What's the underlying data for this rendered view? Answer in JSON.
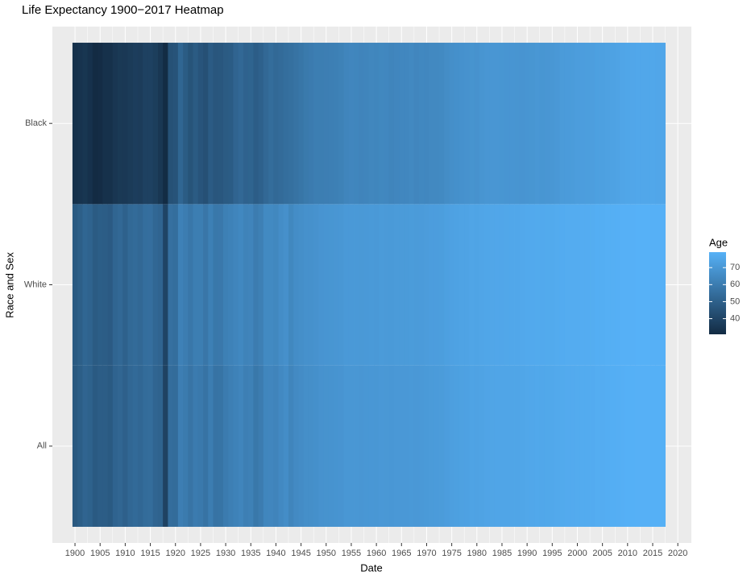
{
  "chart_data": {
    "type": "heatmap",
    "title": "Life Expectancy 1900−2017 Heatmap",
    "x_label": "Date",
    "y_label": "Race and Sex",
    "legend_title": "Age",
    "low_color": "#132B43",
    "high_color": "#56B1F7",
    "legend_ticks": [
      40,
      50,
      60,
      70
    ],
    "xlim": [
      1895.5,
      2022.7
    ],
    "xticks": [
      1900,
      1905,
      1910,
      1915,
      1920,
      1925,
      1930,
      1935,
      1940,
      1945,
      1950,
      1955,
      1960,
      1965,
      1970,
      1975,
      1980,
      1985,
      1990,
      1995,
      2000,
      2005,
      2010,
      2015,
      2020
    ],
    "grid": true,
    "x": [
      1900,
      1901,
      1902,
      1903,
      1904,
      1905,
      1906,
      1907,
      1908,
      1909,
      1910,
      1911,
      1912,
      1913,
      1914,
      1915,
      1916,
      1917,
      1918,
      1919,
      1920,
      1921,
      1922,
      1923,
      1924,
      1925,
      1926,
      1927,
      1928,
      1929,
      1930,
      1931,
      1932,
      1933,
      1934,
      1935,
      1936,
      1937,
      1938,
      1939,
      1940,
      1941,
      1942,
      1943,
      1944,
      1945,
      1946,
      1947,
      1948,
      1949,
      1950,
      1951,
      1952,
      1953,
      1954,
      1955,
      1956,
      1957,
      1958,
      1959,
      1960,
      1961,
      1962,
      1963,
      1964,
      1965,
      1966,
      1967,
      1968,
      1969,
      1970,
      1971,
      1972,
      1973,
      1974,
      1975,
      1976,
      1977,
      1978,
      1979,
      1980,
      1981,
      1982,
      1983,
      1984,
      1985,
      1986,
      1987,
      1988,
      1989,
      1990,
      1991,
      1992,
      1993,
      1994,
      1995,
      1996,
      1997,
      1998,
      1999,
      2000,
      2001,
      2002,
      2003,
      2004,
      2005,
      2006,
      2007,
      2008,
      2009,
      2010,
      2011,
      2012,
      2013,
      2014,
      2015,
      2016,
      2017
    ],
    "series": [
      {
        "name": "All",
        "values": [
          47.3,
          49.1,
          51.5,
          50.5,
          47.6,
          48.7,
          48.7,
          47.6,
          51.1,
          52.1,
          50.0,
          52.6,
          53.5,
          52.5,
          54.2,
          54.5,
          51.7,
          50.9,
          39.1,
          54.7,
          54.1,
          60.8,
          59.6,
          57.2,
          59.7,
          59.0,
          56.7,
          60.4,
          56.8,
          57.1,
          59.7,
          61.1,
          62.1,
          63.3,
          61.1,
          61.7,
          58.5,
          60.0,
          63.5,
          63.7,
          62.9,
          64.8,
          66.2,
          63.3,
          65.2,
          65.9,
          66.7,
          66.8,
          67.2,
          68.0,
          68.2,
          68.4,
          68.6,
          68.8,
          69.6,
          69.6,
          69.7,
          69.5,
          69.6,
          69.9,
          69.7,
          70.2,
          70.1,
          69.9,
          70.2,
          70.2,
          70.2,
          70.5,
          70.2,
          70.5,
          70.8,
          71.1,
          71.2,
          71.4,
          72.0,
          72.6,
          72.9,
          73.3,
          73.5,
          73.9,
          73.7,
          74.1,
          74.5,
          74.6,
          74.7,
          74.7,
          74.7,
          74.9,
          74.9,
          75.1,
          75.4,
          75.5,
          75.8,
          75.5,
          75.7,
          75.8,
          76.1,
          76.5,
          76.7,
          76.7,
          76.8,
          76.9,
          76.9,
          77.1,
          77.5,
          77.4,
          77.7,
          77.9,
          78.1,
          78.5,
          78.7,
          78.7,
          78.8,
          78.8,
          78.9,
          78.7,
          78.7,
          78.6
        ]
      },
      {
        "name": "White",
        "values": [
          47.6,
          49.4,
          51.9,
          50.9,
          48.0,
          49.1,
          48.9,
          47.9,
          51.8,
          52.8,
          50.3,
          53.0,
          53.9,
          52.9,
          54.9,
          55.1,
          52.5,
          51.5,
          39.8,
          55.8,
          54.9,
          61.8,
          60.4,
          58.3,
          60.6,
          60.7,
          58.0,
          61.4,
          58.4,
          58.6,
          61.4,
          62.1,
          63.2,
          64.3,
          62.4,
          62.9,
          60.0,
          61.5,
          65.0,
          65.0,
          64.2,
          66.2,
          67.3,
          64.2,
          66.2,
          66.8,
          67.5,
          67.6,
          68.0,
          68.8,
          69.1,
          69.3,
          69.5,
          69.7,
          70.5,
          70.5,
          70.6,
          70.3,
          70.5,
          70.7,
          70.6,
          71.0,
          70.9,
          70.8,
          71.1,
          71.1,
          71.1,
          71.4,
          71.1,
          71.3,
          71.7,
          72.0,
          72.0,
          72.2,
          72.8,
          73.4,
          73.6,
          74.0,
          74.1,
          74.6,
          74.4,
          74.8,
          75.1,
          75.2,
          75.3,
          75.3,
          75.4,
          75.6,
          75.6,
          75.9,
          76.1,
          76.3,
          76.5,
          76.3,
          76.5,
          76.5,
          76.8,
          77.1,
          77.3,
          77.3,
          77.3,
          77.4,
          77.4,
          77.6,
          77.9,
          77.9,
          78.2,
          78.4,
          78.5,
          78.8,
          78.9,
          78.9,
          79.0,
          79.0,
          79.1,
          78.9,
          78.9,
          78.8
        ]
      },
      {
        "name": "Black",
        "values": [
          33.0,
          33.7,
          34.6,
          33.1,
          30.8,
          31.3,
          32.9,
          32.9,
          34.9,
          35.7,
          35.6,
          36.4,
          37.4,
          37.1,
          38.9,
          38.9,
          37.5,
          35.0,
          31.1,
          44.5,
          45.3,
          52.0,
          48.3,
          45.4,
          48.1,
          45.7,
          44.2,
          48.2,
          46.3,
          46.7,
          48.1,
          48.4,
          51.5,
          52.8,
          50.8,
          51.3,
          49.0,
          50.3,
          52.9,
          54.5,
          53.1,
          53.8,
          54.9,
          55.6,
          56.6,
          57.7,
          59.1,
          59.7,
          60.6,
          60.6,
          60.8,
          61.2,
          61.4,
          62.0,
          63.4,
          63.7,
          63.6,
          63.0,
          63.4,
          63.9,
          63.6,
          64.2,
          64.1,
          63.3,
          63.7,
          64.1,
          64.0,
          64.6,
          63.7,
          64.3,
          64.1,
          64.6,
          64.7,
          65.0,
          66.0,
          66.8,
          67.2,
          67.7,
          68.1,
          68.5,
          68.1,
          68.9,
          69.4,
          69.4,
          69.5,
          69.3,
          69.1,
          69.1,
          68.9,
          68.8,
          69.1,
          69.3,
          69.6,
          69.2,
          69.5,
          69.6,
          70.2,
          71.1,
          71.3,
          71.4,
          71.8,
          72.0,
          72.1,
          72.3,
          72.8,
          72.8,
          73.2,
          73.6,
          74.0,
          74.7,
          75.1,
          75.3,
          75.5,
          75.5,
          75.6,
          75.5,
          75.3,
          75.3
        ]
      }
    ]
  }
}
